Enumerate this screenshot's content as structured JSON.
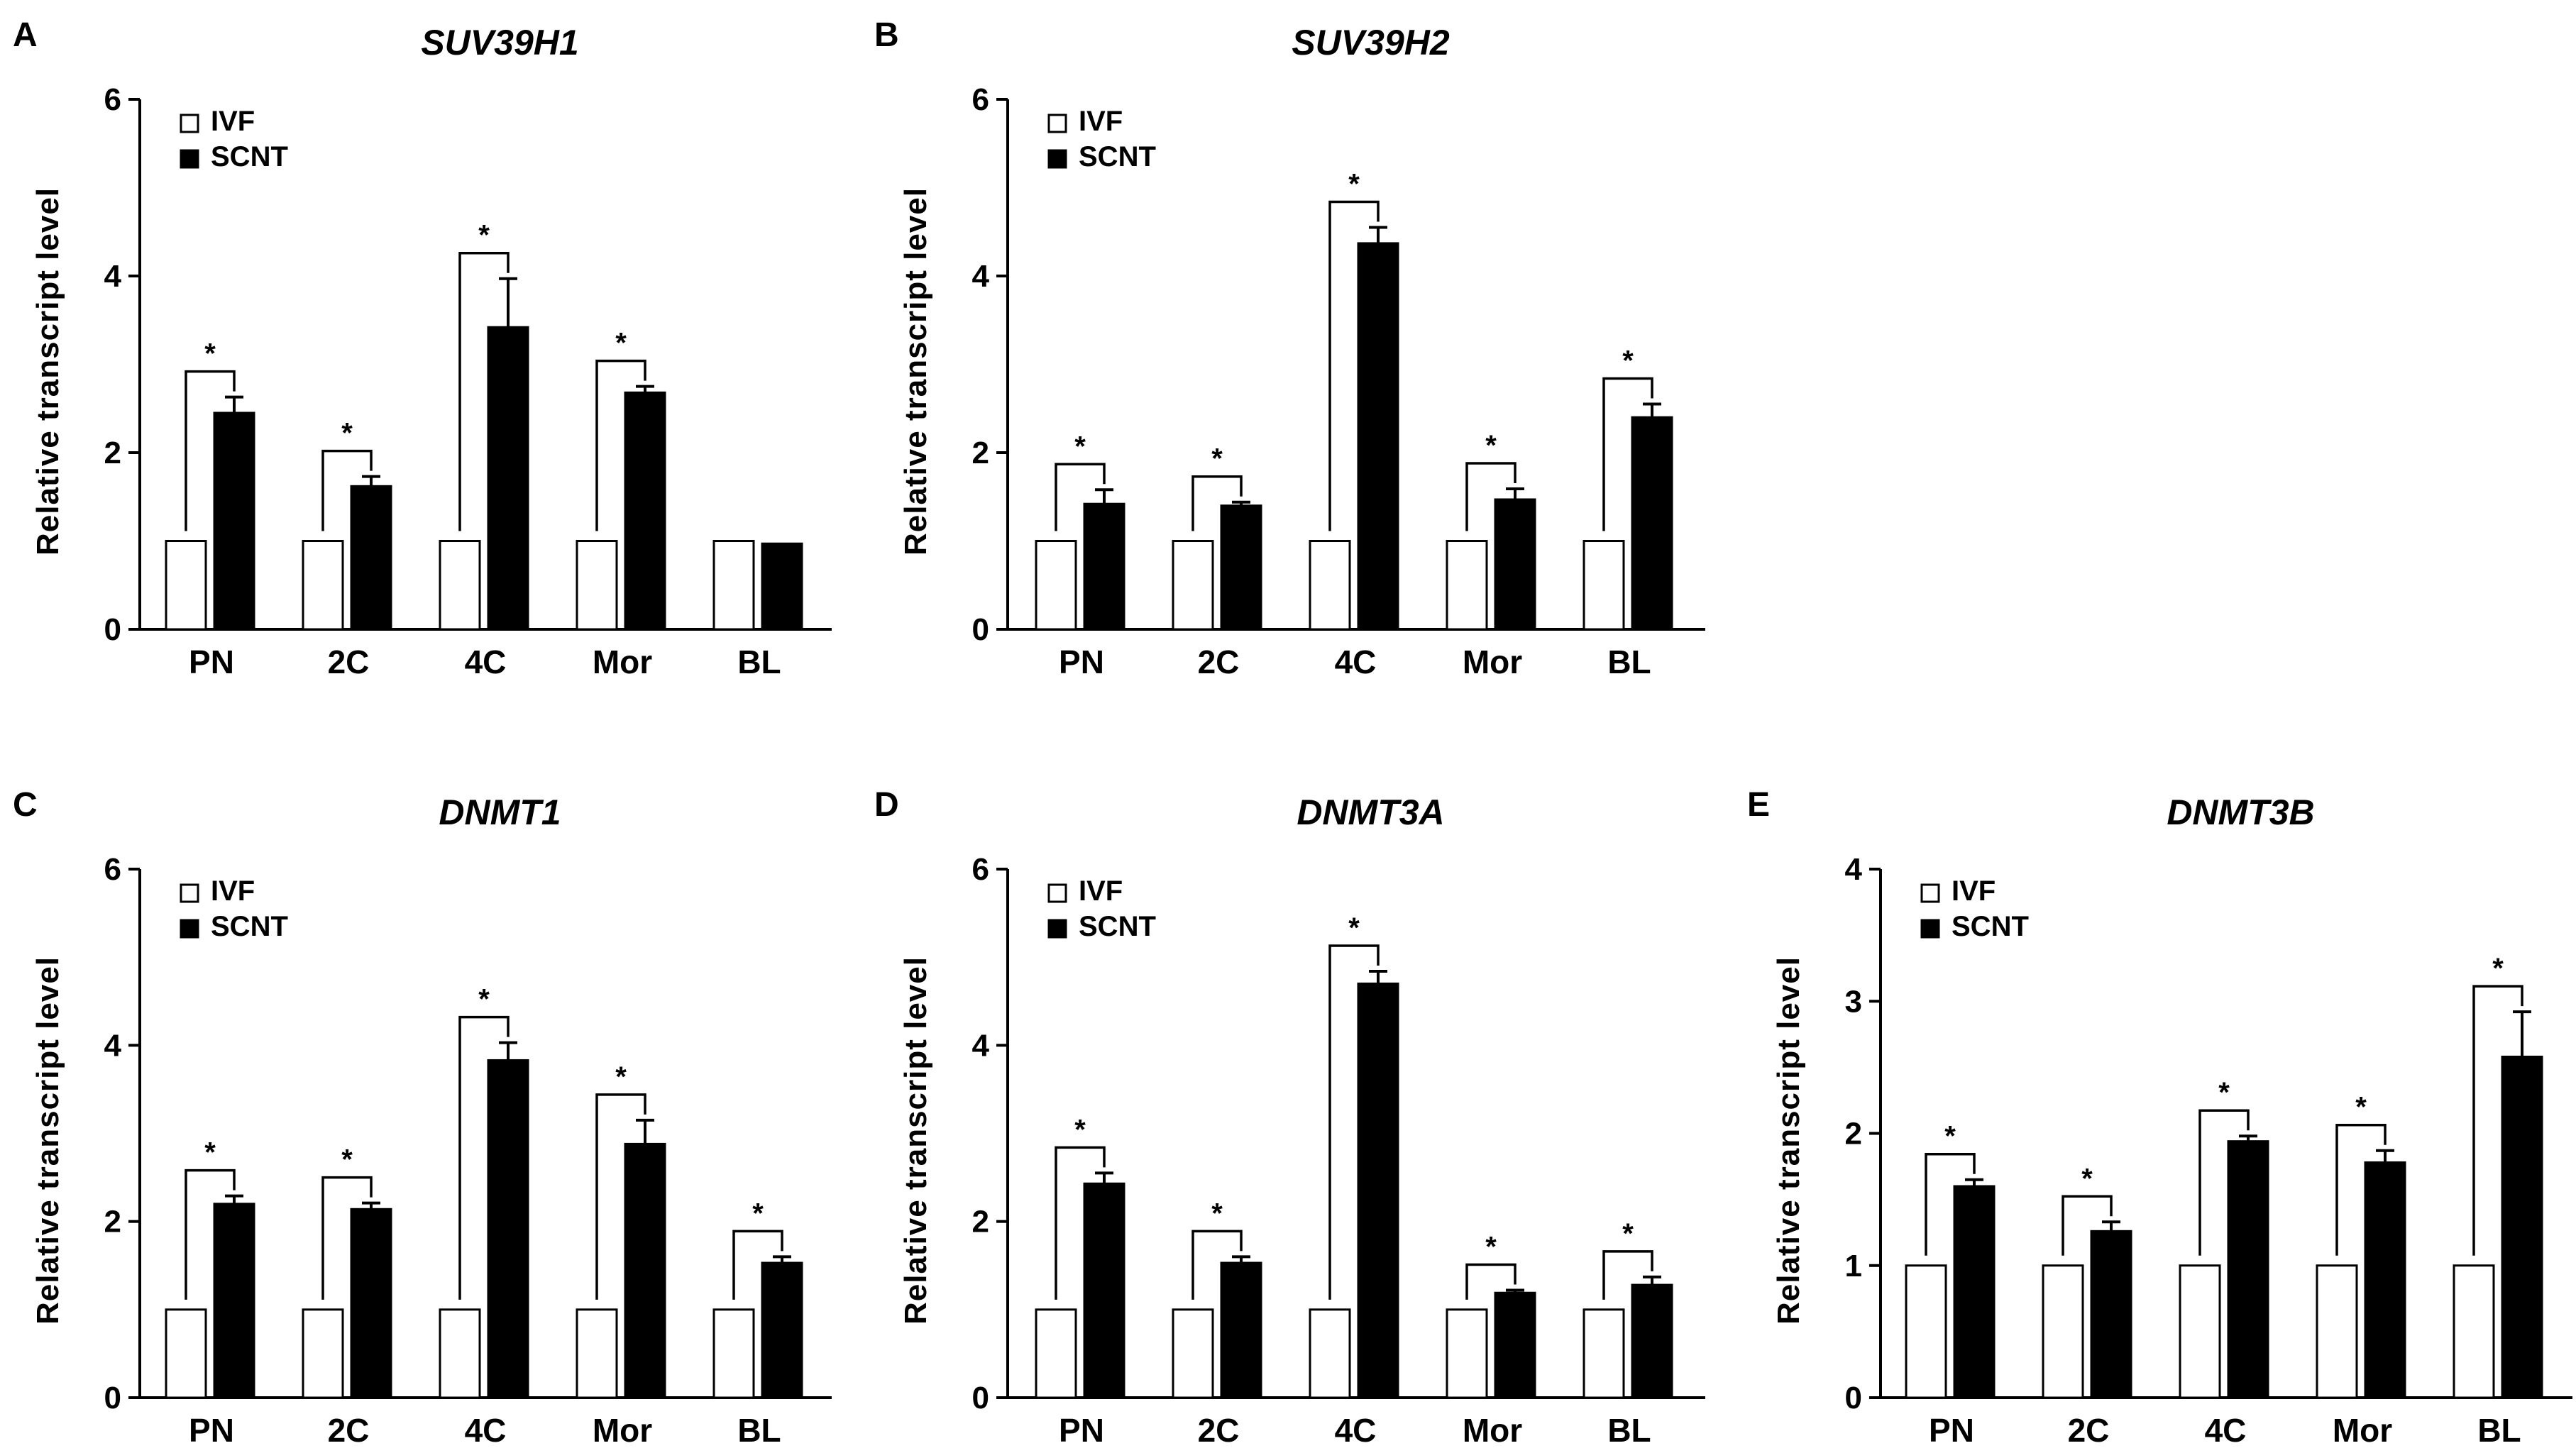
{
  "legend": {
    "ivf_label": "IVF",
    "scnt_label": "SCNT"
  },
  "y_axis_label": "Relative transcript level",
  "chart_data": [
    {
      "panel": "A",
      "type": "bar",
      "title": "SUV39H1",
      "ylabel": "Relative transcript level",
      "ylim": [
        0,
        6
      ],
      "yticks": [
        0,
        2,
        4,
        6
      ],
      "categories": [
        "PN",
        "2C",
        "4C",
        "Mor",
        "BL"
      ],
      "series": [
        {
          "name": "IVF",
          "values": [
            1,
            1,
            1,
            1,
            1
          ],
          "errors": [
            0,
            0,
            0,
            0,
            0
          ]
        },
        {
          "name": "SCNT",
          "values": [
            2.45,
            1.62,
            3.42,
            2.68,
            0.97
          ],
          "errors": [
            0.18,
            0.11,
            0.55,
            0.07,
            0
          ]
        }
      ],
      "significant": [
        true,
        true,
        true,
        true,
        false
      ]
    },
    {
      "panel": "B",
      "type": "bar",
      "title": "SUV39H2",
      "ylabel": "Relative transcript level",
      "ylim": [
        0,
        6
      ],
      "yticks": [
        0,
        2,
        4,
        6
      ],
      "categories": [
        "PN",
        "2C",
        "4C",
        "Mor",
        "BL"
      ],
      "series": [
        {
          "name": "IVF",
          "values": [
            1,
            1,
            1,
            1,
            1
          ],
          "errors": [
            0,
            0,
            0,
            0,
            0
          ]
        },
        {
          "name": "SCNT",
          "values": [
            1.42,
            1.4,
            4.37,
            1.47,
            2.4
          ],
          "errors": [
            0.16,
            0.04,
            0.18,
            0.12,
            0.15
          ]
        }
      ],
      "significant": [
        true,
        true,
        true,
        true,
        true
      ]
    },
    {
      "panel": "C",
      "type": "bar",
      "title": "DNMT1",
      "ylabel": "Relative transcript level",
      "ylim": [
        0,
        6
      ],
      "yticks": [
        0,
        2,
        4,
        6
      ],
      "categories": [
        "PN",
        "2C",
        "4C",
        "Mor",
        "BL"
      ],
      "series": [
        {
          "name": "IVF",
          "values": [
            1,
            1,
            1,
            1,
            1
          ],
          "errors": [
            0,
            0,
            0,
            0,
            0
          ]
        },
        {
          "name": "SCNT",
          "values": [
            2.2,
            2.14,
            3.83,
            2.88,
            1.53
          ],
          "errors": [
            0.09,
            0.07,
            0.2,
            0.27,
            0.07
          ]
        }
      ],
      "significant": [
        true,
        true,
        true,
        true,
        true
      ]
    },
    {
      "panel": "D",
      "type": "bar",
      "title": "DNMT3A",
      "ylabel": "Relative transcript level",
      "ylim": [
        0,
        6
      ],
      "yticks": [
        0,
        2,
        4,
        6
      ],
      "categories": [
        "PN",
        "2C",
        "4C",
        "Mor",
        "BL"
      ],
      "series": [
        {
          "name": "IVF",
          "values": [
            1,
            1,
            1,
            1,
            1
          ],
          "errors": [
            0,
            0,
            0,
            0,
            0
          ]
        },
        {
          "name": "SCNT",
          "values": [
            2.43,
            1.53,
            4.7,
            1.19,
            1.28
          ],
          "errors": [
            0.12,
            0.07,
            0.14,
            0.03,
            0.09
          ]
        }
      ],
      "significant": [
        true,
        true,
        true,
        true,
        true
      ]
    },
    {
      "panel": "E",
      "type": "bar",
      "title": "DNMT3B",
      "ylabel": "Relative transcript level",
      "ylim": [
        0,
        4
      ],
      "yticks": [
        0,
        1,
        2,
        3,
        4
      ],
      "categories": [
        "PN",
        "2C",
        "4C",
        "Mor",
        "BL"
      ],
      "series": [
        {
          "name": "IVF",
          "values": [
            1,
            1,
            1,
            1,
            1
          ],
          "errors": [
            0,
            0,
            0,
            0,
            0
          ]
        },
        {
          "name": "SCNT",
          "values": [
            1.6,
            1.26,
            1.94,
            1.78,
            2.58
          ],
          "errors": [
            0.05,
            0.07,
            0.04,
            0.09,
            0.34
          ]
        }
      ],
      "significant": [
        true,
        true,
        true,
        true,
        true
      ]
    }
  ]
}
